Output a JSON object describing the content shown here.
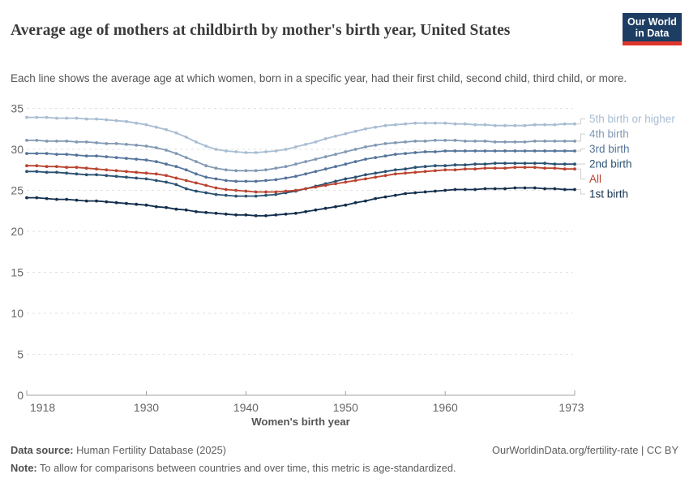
{
  "header": {
    "title": "Average age of mothers at childbirth by mother's birth year, United States",
    "subtitle": "Each line shows the average age at which women, born in a specific year, had their first child, second child, third child, or more.",
    "logo_line1": "Our World",
    "logo_line2": "in Data"
  },
  "chart_data": {
    "type": "line",
    "title": "Average age of mothers at childbirth by mother's birth year, United States",
    "xlabel": "Women's birth year",
    "ylabel": "",
    "ylim": [
      0,
      35
    ],
    "yticks": [
      0,
      5,
      10,
      15,
      20,
      25,
      30,
      35
    ],
    "xticks": [
      1918,
      1930,
      1940,
      1950,
      1960,
      1973
    ],
    "grid": "horizontal-dashed",
    "legend_position": "right-of-line-ends",
    "colors": {
      "grid": "#e2e2e2",
      "axis": "#a0a0a0",
      "tick_label": "#666666",
      "axis_title": "#555555",
      "connector": "#cfcfcf"
    },
    "x": [
      1918,
      1919,
      1920,
      1921,
      1922,
      1923,
      1924,
      1925,
      1926,
      1927,
      1928,
      1929,
      1930,
      1931,
      1932,
      1933,
      1934,
      1935,
      1936,
      1937,
      1938,
      1939,
      1940,
      1941,
      1942,
      1943,
      1944,
      1945,
      1946,
      1947,
      1948,
      1949,
      1950,
      1951,
      1952,
      1953,
      1954,
      1955,
      1956,
      1957,
      1958,
      1959,
      1960,
      1961,
      1962,
      1963,
      1964,
      1965,
      1966,
      1967,
      1968,
      1969,
      1970,
      1971,
      1972,
      1973
    ],
    "series": [
      {
        "name": "5th birth or higher",
        "color": "#a8bdd3",
        "values": [
          33.9,
          33.9,
          33.9,
          33.8,
          33.8,
          33.8,
          33.7,
          33.7,
          33.6,
          33.5,
          33.4,
          33.2,
          33.0,
          32.7,
          32.4,
          32.0,
          31.5,
          30.9,
          30.4,
          30.0,
          29.8,
          29.7,
          29.6,
          29.6,
          29.7,
          29.8,
          30.0,
          30.3,
          30.6,
          30.9,
          31.3,
          31.6,
          31.9,
          32.2,
          32.5,
          32.7,
          32.9,
          33.0,
          33.1,
          33.2,
          33.2,
          33.2,
          33.2,
          33.1,
          33.1,
          33.0,
          33.0,
          32.9,
          32.9,
          32.9,
          32.9,
          33.0,
          33.0,
          33.0,
          33.1,
          33.1
        ]
      },
      {
        "name": "4th birth",
        "color": "#8299b4",
        "values": [
          31.1,
          31.1,
          31.0,
          31.0,
          31.0,
          30.9,
          30.9,
          30.8,
          30.7,
          30.7,
          30.6,
          30.5,
          30.4,
          30.2,
          29.9,
          29.5,
          29.0,
          28.5,
          28.0,
          27.7,
          27.5,
          27.4,
          27.4,
          27.4,
          27.5,
          27.7,
          27.9,
          28.2,
          28.5,
          28.8,
          29.1,
          29.4,
          29.7,
          30.0,
          30.3,
          30.5,
          30.7,
          30.8,
          30.9,
          31.0,
          31.0,
          31.1,
          31.1,
          31.1,
          31.0,
          31.0,
          31.0,
          30.9,
          30.9,
          30.9,
          30.9,
          31.0,
          31.0,
          31.0,
          31.0,
          31.0
        ]
      },
      {
        "name": "3rd birth",
        "color": "#54749b",
        "values": [
          29.5,
          29.5,
          29.5,
          29.4,
          29.4,
          29.3,
          29.2,
          29.2,
          29.1,
          29.0,
          28.9,
          28.8,
          28.7,
          28.5,
          28.2,
          27.9,
          27.5,
          27.0,
          26.6,
          26.4,
          26.2,
          26.1,
          26.1,
          26.1,
          26.2,
          26.3,
          26.5,
          26.7,
          27.0,
          27.3,
          27.6,
          27.9,
          28.2,
          28.5,
          28.8,
          29.0,
          29.2,
          29.4,
          29.5,
          29.6,
          29.7,
          29.7,
          29.8,
          29.8,
          29.8,
          29.8,
          29.8,
          29.8,
          29.8,
          29.8,
          29.8,
          29.8,
          29.8,
          29.8,
          29.8,
          29.8
        ]
      },
      {
        "name": "2nd birth",
        "color": "#2b5273",
        "values": [
          27.3,
          27.3,
          27.2,
          27.2,
          27.1,
          27.0,
          26.9,
          26.9,
          26.8,
          26.7,
          26.6,
          26.5,
          26.4,
          26.2,
          26.0,
          25.7,
          25.2,
          24.9,
          24.7,
          24.5,
          24.4,
          24.3,
          24.3,
          24.3,
          24.4,
          24.5,
          24.7,
          24.9,
          25.2,
          25.5,
          25.8,
          26.1,
          26.4,
          26.6,
          26.9,
          27.1,
          27.3,
          27.5,
          27.6,
          27.8,
          27.9,
          28.0,
          28.0,
          28.1,
          28.1,
          28.2,
          28.2,
          28.3,
          28.3,
          28.3,
          28.3,
          28.3,
          28.3,
          28.2,
          28.2,
          28.2
        ]
      },
      {
        "name": "All",
        "color": "#bb4430",
        "values": [
          28.0,
          28.0,
          27.9,
          27.9,
          27.8,
          27.8,
          27.7,
          27.6,
          27.5,
          27.4,
          27.3,
          27.2,
          27.1,
          27.0,
          26.8,
          26.5,
          26.2,
          25.9,
          25.6,
          25.3,
          25.1,
          25.0,
          24.9,
          24.8,
          24.8,
          24.8,
          24.9,
          25.0,
          25.2,
          25.4,
          25.6,
          25.8,
          26.0,
          26.2,
          26.4,
          26.6,
          26.8,
          27.0,
          27.1,
          27.2,
          27.3,
          27.4,
          27.5,
          27.5,
          27.6,
          27.6,
          27.7,
          27.7,
          27.7,
          27.8,
          27.8,
          27.8,
          27.7,
          27.7,
          27.6,
          27.6
        ]
      },
      {
        "name": "1st birth",
        "color": "#132f4e",
        "values": [
          24.1,
          24.1,
          24.0,
          23.9,
          23.9,
          23.8,
          23.7,
          23.7,
          23.6,
          23.5,
          23.4,
          23.3,
          23.2,
          23.0,
          22.9,
          22.7,
          22.6,
          22.4,
          22.3,
          22.2,
          22.1,
          22.0,
          22.0,
          21.9,
          21.9,
          22.0,
          22.1,
          22.2,
          22.4,
          22.6,
          22.8,
          23.0,
          23.2,
          23.5,
          23.7,
          24.0,
          24.2,
          24.4,
          24.6,
          24.7,
          24.8,
          24.9,
          25.0,
          25.1,
          25.1,
          25.1,
          25.2,
          25.2,
          25.2,
          25.3,
          25.3,
          25.3,
          25.2,
          25.2,
          25.1,
          25.1
        ]
      }
    ]
  },
  "footer": {
    "source_label": "Data source:",
    "source_value": "Human Fertility Database (2025)",
    "attribution": "OurWorldinData.org/fertility-rate | CC BY",
    "note_label": "Note:",
    "note_value": "To allow for comparisons between countries and over time, this metric is age-standardized."
  }
}
